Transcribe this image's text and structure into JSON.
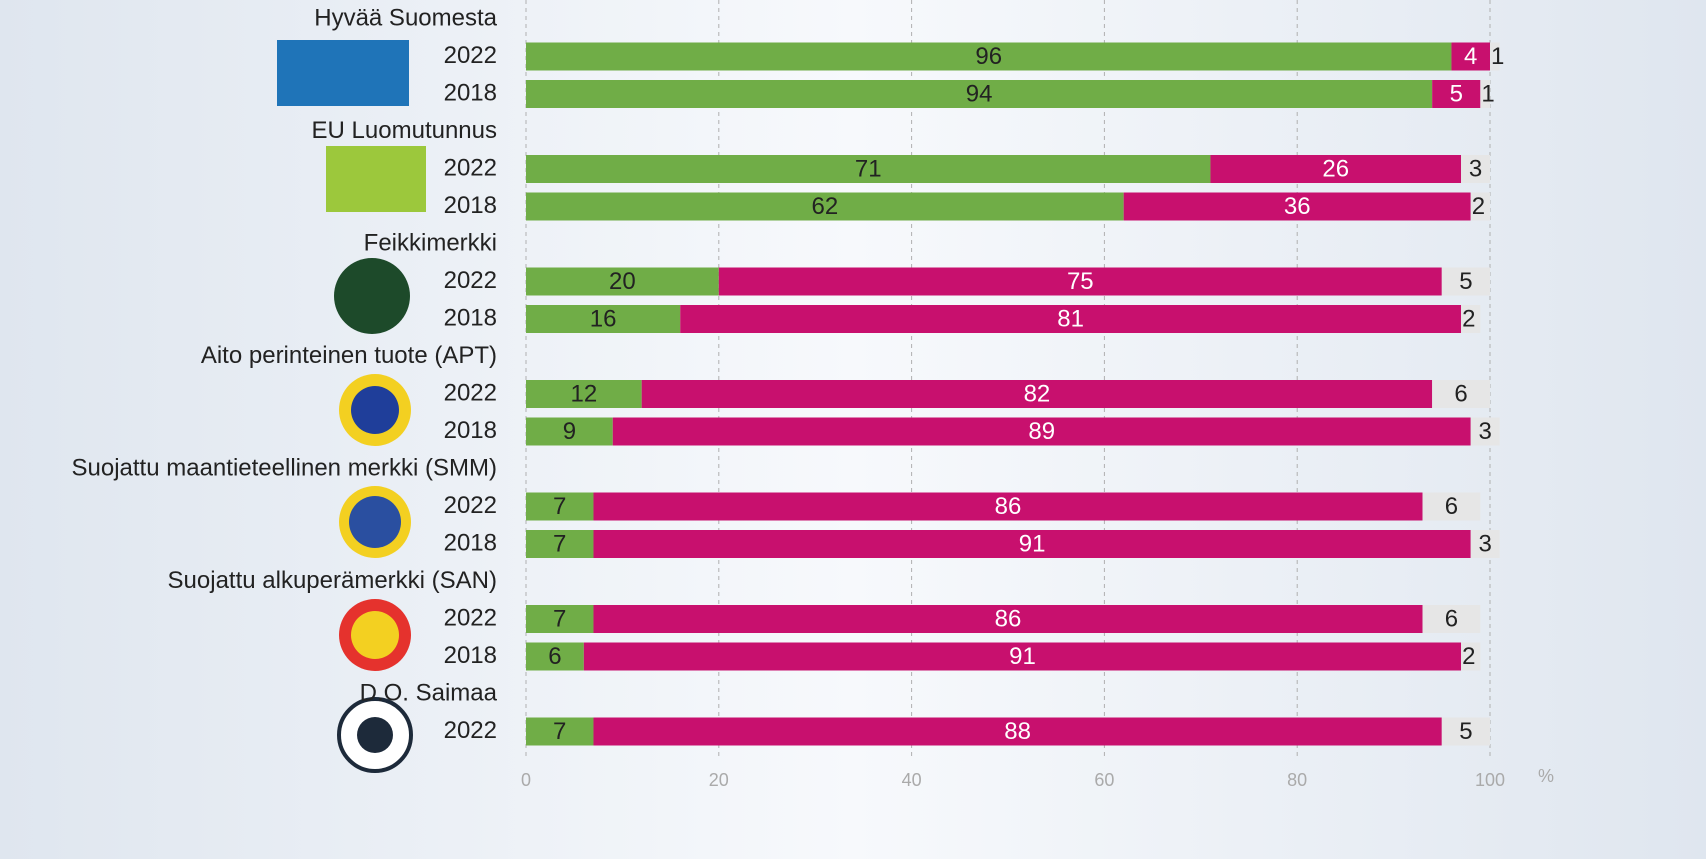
{
  "chart_data": {
    "type": "stacked-bar-horizontal",
    "categories": [
      "2022",
      "2018",
      "2022",
      "2018",
      "2022",
      "2018",
      "2022",
      "2018",
      "2022",
      "2018",
      "2022",
      "2018",
      "2022"
    ],
    "group_labels": [
      "Hyvää Suomesta",
      null,
      "EU Luomutunnus",
      null,
      "Feikkimerkki",
      null,
      "Aito perinteinen tuote (APT)",
      null,
      "Suojattu maantieteellinen merkki (SMM)",
      null,
      "Suojattu alkuperämerkki (SAN)",
      null,
      "D.O. Saimaa"
    ],
    "series": [
      {
        "color": "#70ad47",
        "values": [
          96,
          94,
          71,
          62,
          20,
          16,
          12,
          9,
          7,
          7,
          7,
          6,
          7
        ]
      },
      {
        "color": "#c8106e",
        "values": [
          4,
          5,
          26,
          36,
          75,
          81,
          82,
          89,
          86,
          91,
          86,
          91,
          88
        ]
      },
      {
        "color": "#e6e6e6",
        "values": [
          1,
          1,
          3,
          2,
          5,
          2,
          6,
          3,
          6,
          3,
          6,
          2,
          5
        ]
      }
    ],
    "xlim": [
      0,
      100
    ],
    "xticks": [
      0,
      20,
      40,
      60,
      80,
      100
    ],
    "x_unit": "%",
    "grid": true
  }
}
